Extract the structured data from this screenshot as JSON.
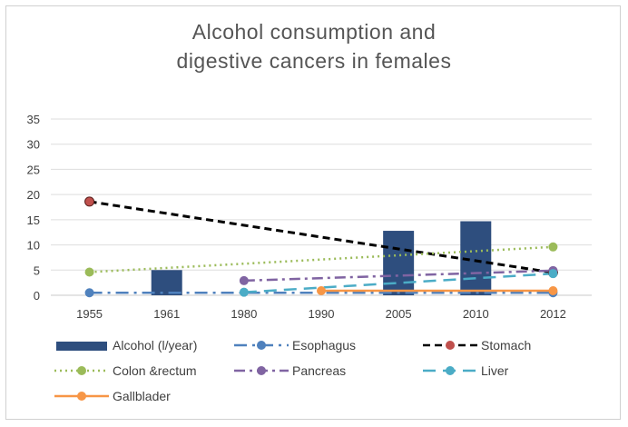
{
  "chart_data": {
    "type": "bar",
    "title_lines": [
      "Alcohol consumption and",
      "digestive cancers in females"
    ],
    "categories": [
      "1955",
      "1961",
      "1980",
      "1990",
      "2005",
      "2010",
      "2012"
    ],
    "ylim": [
      0,
      35
    ],
    "yticks": [
      0,
      5,
      10,
      15,
      20,
      25,
      30,
      35
    ],
    "grid": true,
    "legend_position": "bottom",
    "bar_series": {
      "name": "Alcohol (l/year)",
      "color": "#2e4e7e",
      "values": [
        null,
        5.0,
        null,
        null,
        12.8,
        14.7,
        null
      ]
    },
    "line_series": [
      {
        "name": "Esophagus",
        "color": "#4f81bd",
        "dash": "longdashdot",
        "points": [
          {
            "x": "1955",
            "y": 0.5
          },
          {
            "x": "2012",
            "y": 0.5
          }
        ]
      },
      {
        "name": "Stomach",
        "color": "#000000",
        "marker_color": "#c0504d",
        "dash": "dash",
        "points": [
          {
            "x": "1955",
            "y": 18.6
          },
          {
            "x": "2012",
            "y": 4.5
          }
        ]
      },
      {
        "name": "Colon &rectum",
        "color": "#9bbb59",
        "dash": "dot",
        "points": [
          {
            "x": "1955",
            "y": 4.6
          },
          {
            "x": "2012",
            "y": 9.6
          }
        ]
      },
      {
        "name": "Pancreas",
        "color": "#8064a2",
        "dash": "dashdot",
        "points": [
          {
            "x": "1980",
            "y": 2.9
          },
          {
            "x": "2012",
            "y": 4.9
          }
        ]
      },
      {
        "name": "Liver",
        "color": "#4bacc6",
        "dash": "longdash",
        "points": [
          {
            "x": "1980",
            "y": 0.6
          },
          {
            "x": "2012",
            "y": 4.3
          }
        ]
      },
      {
        "name": "Gallblader",
        "color": "#f79646",
        "dash": "solid",
        "points": [
          {
            "x": "1990",
            "y": 0.9
          },
          {
            "x": "2012",
            "y": 0.9
          }
        ]
      }
    ]
  }
}
